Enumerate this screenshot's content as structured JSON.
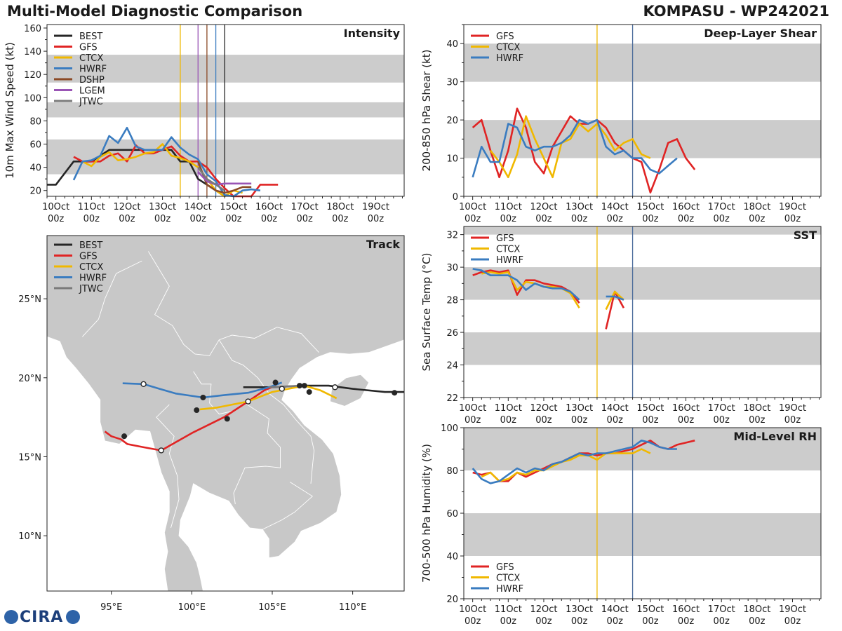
{
  "header": {
    "left_title": "Multi-Model Diagnostic Comparison",
    "right_title": "KOMPASU - WP242021"
  },
  "logo_text": "CIRA",
  "colors": {
    "BEST": "#262626",
    "GFS": "#e02424",
    "CTCX": "#f0b800",
    "HWRF": "#3a7cc0",
    "DSHP": "#8b4a26",
    "LGEM": "#9a55b5",
    "JTWC": "#7a7a7a",
    "band": "#cccccc",
    "land": "#c8c8c8",
    "water": "#ffffff"
  },
  "time_axis": {
    "labels": [
      "10Oct\n00z",
      "11Oct\n00z",
      "12Oct\n00z",
      "13Oct\n00z",
      "14Oct\n00z",
      "15Oct\n00z",
      "16Oct\n00z",
      "17Oct\n00z",
      "18Oct\n00z",
      "19Oct\n00z"
    ],
    "range": [
      -0.25,
      9.8
    ]
  },
  "intensity_markers": [
    {
      "t": 3.5,
      "color": "#f0b800"
    },
    {
      "t": 4.0,
      "color": "#9a55b5"
    },
    {
      "t": 4.25,
      "color": "#8b4a26"
    },
    {
      "t": 4.5,
      "color": "#3a7cc0"
    },
    {
      "t": 4.75,
      "color": "#262626"
    }
  ],
  "panel_markers": [
    {
      "t": 3.5,
      "color": "#f0b800"
    },
    {
      "t": 4.5,
      "color": "#4a6a9a"
    }
  ],
  "chart_data": [
    {
      "id": "intensity",
      "type": "line",
      "title": "Intensity",
      "ylabel": "10m Max Wind Speed (kt)",
      "ylim": [
        15,
        163
      ],
      "yticks": [
        20,
        40,
        60,
        80,
        100,
        120,
        140,
        160
      ],
      "bands": [
        [
          34,
          64
        ],
        [
          83,
          96
        ],
        [
          113,
          137
        ]
      ],
      "legend": [
        "BEST",
        "GFS",
        "CTCX",
        "HWRF",
        "DSHP",
        "LGEM",
        "JTWC"
      ],
      "series": [
        {
          "name": "BEST",
          "x": [
            -0.25,
            0,
            0.25,
            0.5,
            0.75,
            1,
            1.25,
            1.5,
            1.75,
            2,
            2.25,
            2.5,
            2.75,
            3,
            3.25,
            3.5,
            3.75,
            4,
            4.25,
            4.5,
            4.75
          ],
          "y": [
            25,
            25,
            35,
            45,
            45,
            45,
            50,
            55,
            55,
            55,
            55,
            55,
            55,
            55,
            55,
            45,
            45,
            30,
            25,
            20,
            15
          ]
        },
        {
          "name": "GFS",
          "x": [
            0.5,
            0.75,
            1,
            1.25,
            1.5,
            1.75,
            2,
            2.25,
            2.5,
            2.75,
            3,
            3.25,
            3.5,
            3.75,
            4,
            4.25,
            4.5,
            4.75,
            5,
            5.25,
            5.5,
            5.75,
            6,
            6.25
          ],
          "y": [
            49,
            45,
            45,
            45,
            50,
            52,
            45,
            59,
            52,
            52,
            55,
            58,
            50,
            45,
            45,
            40,
            30,
            22,
            15,
            15,
            15,
            25,
            25,
            25
          ]
        },
        {
          "name": "CTCX",
          "x": [
            0.75,
            1,
            1.25,
            1.5,
            1.75,
            2,
            2.25,
            2.5,
            2.75,
            3,
            3.25,
            3.5,
            3.75,
            4,
            4.25,
            4.5,
            4.75,
            5,
            5.25
          ],
          "y": [
            45,
            41,
            49,
            53,
            46,
            47,
            49,
            52,
            53,
            60,
            50,
            48,
            45,
            40,
            30,
            20,
            15,
            20,
            18
          ]
        },
        {
          "name": "HWRF",
          "x": [
            0.5,
            0.75,
            1,
            1.25,
            1.5,
            1.75,
            2,
            2.25,
            2.5,
            2.75,
            3,
            3.25,
            3.5,
            3.75,
            4,
            4.25,
            4.5,
            4.75,
            5,
            5.25,
            5.5,
            5.75
          ],
          "y": [
            29,
            45,
            46,
            50,
            67,
            61,
            74,
            58,
            55,
            55,
            55,
            66,
            57,
            51,
            47,
            34,
            28,
            16,
            14,
            20,
            21,
            20
          ]
        },
        {
          "name": "DSHP",
          "x": [
            4,
            4.25,
            4.5,
            4.75,
            5,
            5.25,
            5.5
          ],
          "y": [
            45,
            25,
            20,
            18,
            20,
            23,
            23
          ]
        },
        {
          "name": "LGEM",
          "x": [
            4,
            4.25,
            4.5,
            4.75,
            5,
            5.25,
            5.5
          ],
          "y": [
            36,
            28,
            25,
            26,
            26,
            26,
            26
          ]
        },
        {
          "name": "JTWC",
          "x": [
            4,
            4.25,
            4.5,
            4.75
          ],
          "y": [
            40,
            30,
            25,
            20
          ]
        }
      ]
    },
    {
      "id": "shear",
      "type": "line",
      "title": "Deep-Layer Shear",
      "ylabel": "200-850 hPa Shear (kt)",
      "ylim": [
        0,
        45
      ],
      "yticks": [
        0,
        10,
        20,
        30,
        40
      ],
      "bands": [
        [
          10,
          20
        ],
        [
          30,
          40
        ]
      ],
      "legend": [
        "GFS",
        "CTCX",
        "HWRF"
      ],
      "series": [
        {
          "name": "GFS",
          "x": [
            0,
            0.25,
            0.5,
            0.75,
            1,
            1.25,
            1.5,
            1.75,
            2,
            2.25,
            2.5,
            2.75,
            3,
            3.25,
            3.5,
            3.75,
            4,
            4.25,
            4.5,
            4.75,
            5,
            5.25,
            5.5,
            5.75,
            6,
            6.25
          ],
          "y": [
            18,
            20,
            12,
            5,
            12,
            23,
            18,
            9,
            6,
            13,
            17,
            21,
            19,
            19,
            20,
            18,
            14,
            12,
            10,
            9,
            1,
            7,
            14,
            15,
            10,
            7
          ]
        },
        {
          "name": "CTCX",
          "x": [
            0.5,
            0.75,
            1,
            1.25,
            1.5,
            1.75,
            2,
            2.25,
            2.5,
            2.75,
            3,
            3.25,
            3.5,
            3.75,
            4,
            4.25,
            4.5,
            4.75,
            5
          ],
          "y": [
            12,
            9,
            5,
            11,
            21,
            15,
            10,
            5,
            14,
            15,
            19,
            17,
            19,
            16,
            12,
            14,
            15,
            11,
            10
          ]
        },
        {
          "name": "HWRF",
          "x": [
            0,
            0.25,
            0.5,
            0.75,
            1,
            1.25,
            1.5,
            1.75,
            2,
            2.25,
            2.5,
            2.75,
            3,
            3.25,
            3.5,
            3.75,
            4,
            4.25,
            4.5,
            4.75,
            5,
            5.25,
            5.5,
            5.75
          ],
          "y": [
            5,
            13,
            9,
            9,
            19,
            18,
            13,
            12,
            13,
            13,
            14,
            16,
            20,
            19,
            20,
            13,
            11,
            12,
            10,
            10,
            7,
            6,
            8,
            10
          ]
        }
      ]
    },
    {
      "id": "sst",
      "type": "line",
      "title": "SST",
      "ylabel": "Sea Surface Temp (°C)",
      "ylim": [
        22,
        32.5
      ],
      "yticks": [
        22,
        24,
        26,
        28,
        30,
        32
      ],
      "bands": [
        [
          24,
          26
        ],
        [
          28,
          30
        ],
        [
          32,
          32.5
        ]
      ],
      "legend": [
        "GFS",
        "CTCX",
        "HWRF"
      ],
      "series": [
        {
          "name": "GFS",
          "x": [
            0,
            0.25,
            0.5,
            0.75,
            1,
            1.25,
            1.5,
            1.75,
            2,
            2.25,
            2.5,
            2.75,
            3,
            3.25,
            null,
            3.75,
            4,
            4.25
          ],
          "y": [
            29.5,
            29.7,
            29.8,
            29.7,
            29.8,
            28.3,
            29.2,
            29.2,
            29.0,
            28.9,
            28.8,
            28.5,
            27.8,
            null,
            null,
            26.2,
            28.5,
            27.5
          ]
        },
        {
          "name": "CTCX",
          "x": [
            0.25,
            0.5,
            0.75,
            1,
            1.25,
            1.5,
            1.75,
            2,
            2.25,
            2.5,
            2.75,
            3,
            3.25,
            null,
            3.75,
            4,
            4.25
          ],
          "y": [
            29.6,
            29.7,
            29.6,
            29.7,
            28.6,
            29.1,
            29.0,
            28.8,
            28.8,
            28.7,
            28.4,
            27.5,
            null,
            null,
            27.4,
            28.5,
            28.0
          ]
        },
        {
          "name": "HWRF",
          "x": [
            0,
            0.25,
            0.5,
            0.75,
            1,
            1.25,
            1.5,
            1.75,
            2,
            2.25,
            2.5,
            2.75,
            3,
            3.25,
            null,
            3.75,
            4,
            4.25
          ],
          "y": [
            29.9,
            29.8,
            29.5,
            29.5,
            29.5,
            29.2,
            28.6,
            29.0,
            28.8,
            28.7,
            28.7,
            28.5,
            28.0,
            null,
            null,
            28.2,
            28.2,
            28.0
          ]
        }
      ]
    },
    {
      "id": "rh",
      "type": "line",
      "title": "Mid-Level RH",
      "ylabel": "700-500 hPa Humidity (%)",
      "ylim": [
        20,
        100
      ],
      "yticks": [
        20,
        40,
        60,
        80,
        100
      ],
      "bands": [
        [
          40,
          60
        ],
        [
          80,
          100
        ]
      ],
      "legend": [
        "GFS",
        "CTCX",
        "HWRF"
      ],
      "series": [
        {
          "name": "GFS",
          "x": [
            0,
            0.25,
            0.5,
            0.75,
            1,
            1.25,
            1.5,
            1.75,
            2,
            2.25,
            2.5,
            2.75,
            3,
            3.25,
            3.5,
            3.75,
            4,
            4.25,
            4.5,
            4.75,
            5,
            5.25,
            5.5,
            5.75,
            6,
            6.25
          ],
          "y": [
            79,
            78,
            79,
            75,
            75,
            79,
            77,
            79,
            81,
            83,
            84,
            86,
            88,
            88,
            87,
            88,
            88,
            89,
            90,
            92,
            94,
            91,
            90,
            92,
            93,
            94
          ]
        },
        {
          "name": "CTCX",
          "x": [
            0.25,
            0.5,
            0.75,
            1,
            1.25,
            1.5,
            1.75,
            2,
            2.25,
            2.5,
            2.75,
            3,
            3.25,
            3.5,
            3.75,
            4,
            4.25,
            4.5,
            4.75,
            5
          ],
          "y": [
            77,
            79,
            75,
            76,
            79,
            78,
            80,
            80,
            82,
            84,
            85,
            87,
            87,
            85,
            88,
            88,
            88,
            88,
            90,
            88
          ]
        },
        {
          "name": "HWRF",
          "x": [
            0,
            0.25,
            0.5,
            0.75,
            1,
            1.25,
            1.5,
            1.75,
            2,
            2.25,
            2.5,
            2.75,
            3,
            3.25,
            3.5,
            3.75,
            4,
            4.25,
            4.5,
            4.75,
            5,
            5.25,
            5.5,
            5.75
          ],
          "y": [
            81,
            76,
            74,
            75,
            78,
            81,
            79,
            81,
            80,
            83,
            84,
            86,
            88,
            87,
            88,
            88,
            89,
            90,
            91,
            94,
            93,
            91,
            90,
            90
          ]
        }
      ]
    },
    {
      "id": "track",
      "type": "scatter",
      "title": "Track",
      "xlim": [
        91,
        113.2
      ],
      "ylim": [
        6.5,
        29
      ],
      "xticks": [
        95,
        100,
        105,
        110
      ],
      "xticklabels": [
        "95°E",
        "100°E",
        "105°E",
        "110°E"
      ],
      "yticks": [
        10,
        15,
        20,
        25
      ],
      "yticklabels": [
        "10°N",
        "15°N",
        "20°N",
        "25°N"
      ],
      "legend": [
        "BEST",
        "GFS",
        "CTCX",
        "HWRF",
        "JTWC"
      ],
      "series": [
        {
          "name": "BEST",
          "x": [
            113.2,
            112,
            110,
            108.5,
            107,
            106,
            105,
            104,
            103.2
          ],
          "y": [
            19.1,
            19.1,
            19.3,
            19.5,
            19.5,
            19.45,
            19.4,
            19.4,
            19.4
          ],
          "filled": [
            [
              112.6,
              19.05
            ],
            [
              107.3,
              19.1
            ],
            [
              107.0,
              19.5
            ]
          ],
          "open": []
        },
        {
          "name": "GFS",
          "x": [
            94.6,
            95,
            95.6,
            96,
            97,
            98.1,
            100,
            102,
            103.5,
            104.5,
            105.2
          ],
          "y": [
            16.6,
            16.3,
            16.1,
            15.8,
            15.6,
            15.4,
            16.5,
            17.5,
            18.5,
            19.2,
            19.5
          ],
          "filled": [
            [
              95.8,
              16.3
            ],
            [
              102.2,
              17.4
            ],
            [
              105.2,
              19.7
            ]
          ],
          "open": [
            [
              98.1,
              15.4
            ]
          ]
        },
        {
          "name": "CTCX",
          "x": [
            100.5,
            101.5,
            103.5,
            104.5,
            105,
            106,
            107,
            108,
            109
          ],
          "y": [
            18.0,
            18.1,
            18.5,
            18.9,
            19.1,
            19.3,
            19.5,
            19.2,
            18.7
          ],
          "filled": [
            [
              100.3,
              17.95
            ]
          ],
          "open": [
            [
              103.5,
              18.5
            ],
            [
              105.6,
              19.3
            ]
          ]
        },
        {
          "name": "HWRF",
          "x": [
            95.7,
            97,
            98,
            99,
            100.7,
            102,
            103.5,
            104.8,
            105.6
          ],
          "y": [
            19.65,
            19.6,
            19.3,
            19.0,
            18.75,
            18.9,
            19.05,
            19.4,
            19.7
          ],
          "filled": [
            [
              100.7,
              18.75
            ]
          ],
          "open": [
            [
              97,
              19.6
            ],
            [
              108.9,
              19.4
            ]
          ]
        },
        {
          "name": "JTWC",
          "x": [
            104.8,
            105.8,
            106.8
          ],
          "y": [
            19.4,
            19.45,
            19.5
          ],
          "filled": [
            [
              106.7,
              19.5
            ]
          ],
          "open": []
        }
      ]
    }
  ]
}
